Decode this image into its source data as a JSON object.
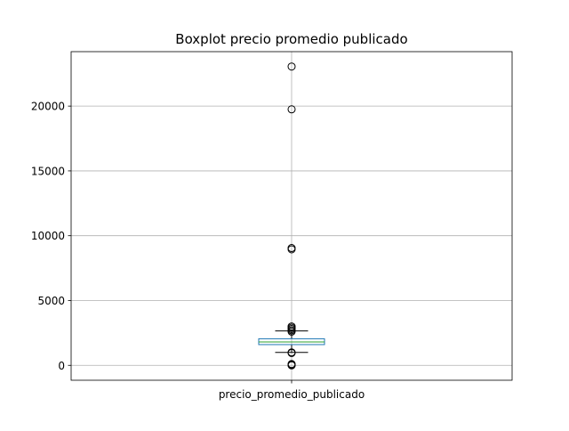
{
  "chart_data": {
    "type": "boxplot",
    "title": "Boxplot precio promedio publicado",
    "xlabel": "",
    "ylabel": "",
    "categories": [
      "precio_promedio_publicado"
    ],
    "ylim": [
      -1150,
      24200
    ],
    "yticks": [
      0,
      5000,
      10000,
      15000,
      20000
    ],
    "ytick_labels": [
      "0",
      "5000",
      "10000",
      "15000",
      "20000"
    ],
    "grid": true,
    "box": {
      "q1": 1600,
      "median": 1800,
      "q3": 2050,
      "whisker_low": 1000,
      "whisker_high": 2650
    },
    "outliers": [
      0,
      30,
      60,
      100,
      950,
      1000,
      2600,
      2700,
      2800,
      2900,
      3000,
      8950,
      9050,
      19750,
      23050
    ],
    "colors": {
      "box": "#1f77b4",
      "median": "#2ca02c",
      "whisker": "#000000",
      "grid": "#b0b0b0",
      "axes": "#000000"
    }
  }
}
